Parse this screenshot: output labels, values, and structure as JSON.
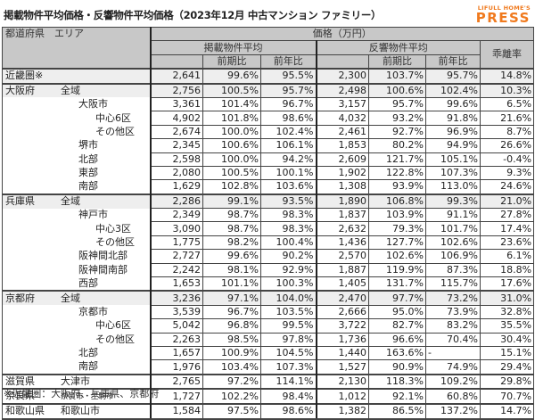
{
  "title": "掲載物件平均価格・反響物件平均価格（2023年12月 中古マンション ファミリー）",
  "logo": {
    "small": "LIFULL HOME'S",
    "big": "PRESS",
    "color": "#f07a1e"
  },
  "table": {
    "header": {
      "region": "都道府県　エリア",
      "price": "価格（万円）",
      "listed": "掲載物件平均",
      "inquired": "反響物件平均",
      "qoq": "前期比",
      "yoy": "前年比",
      "gap": "乖離率"
    },
    "rows": [
      {
        "pref": "近畿圏※",
        "area": "",
        "level": 0,
        "lp": "2,641",
        "lq": "99.6%",
        "ly": "95.5%",
        "ip": "2,300",
        "iq": "103.7%",
        "iy": "95.7%",
        "gap": "14.8%"
      },
      {
        "pref": "大阪府",
        "area": "全域",
        "level": 0,
        "lp": "2,756",
        "lq": "100.5%",
        "ly": "95.7%",
        "ip": "2,498",
        "iq": "100.6%",
        "iy": "102.4%",
        "gap": "10.3%"
      },
      {
        "pref": "",
        "area": "大阪市",
        "level": 1,
        "lp": "3,361",
        "lq": "101.4%",
        "ly": "96.7%",
        "ip": "3,157",
        "iq": "95.7%",
        "iy": "99.6%",
        "gap": "6.5%"
      },
      {
        "pref": "",
        "area": "中心6区",
        "level": 2,
        "lp": "4,902",
        "lq": "101.8%",
        "ly": "98.6%",
        "ip": "4,032",
        "iq": "93.2%",
        "iy": "91.8%",
        "gap": "21.6%"
      },
      {
        "pref": "",
        "area": "その他区",
        "level": 2,
        "lp": "2,674",
        "lq": "100.0%",
        "ly": "102.4%",
        "ip": "2,461",
        "iq": "92.7%",
        "iy": "96.9%",
        "gap": "8.7%"
      },
      {
        "pref": "",
        "area": "堺市",
        "level": 1,
        "lp": "2,345",
        "lq": "100.6%",
        "ly": "106.1%",
        "ip": "1,853",
        "iq": "80.2%",
        "iy": "94.9%",
        "gap": "26.6%"
      },
      {
        "pref": "",
        "area": "北部",
        "level": 1,
        "lp": "2,598",
        "lq": "100.0%",
        "ly": "94.2%",
        "ip": "2,609",
        "iq": "121.7%",
        "iy": "105.1%",
        "gap": "-0.4%"
      },
      {
        "pref": "",
        "area": "東部",
        "level": 1,
        "lp": "2,080",
        "lq": "100.5%",
        "ly": "100.1%",
        "ip": "1,902",
        "iq": "122.8%",
        "iy": "107.3%",
        "gap": "9.3%"
      },
      {
        "pref": "",
        "area": "南部",
        "level": 1,
        "lp": "1,629",
        "lq": "102.8%",
        "ly": "103.6%",
        "ip": "1,308",
        "iq": "93.9%",
        "iy": "113.0%",
        "gap": "24.6%"
      },
      {
        "pref": "兵庫県",
        "area": "全域",
        "level": 0,
        "lp": "2,286",
        "lq": "99.1%",
        "ly": "93.5%",
        "ip": "1,890",
        "iq": "106.8%",
        "iy": "99.3%",
        "gap": "21.0%"
      },
      {
        "pref": "",
        "area": "神戸市",
        "level": 1,
        "lp": "2,349",
        "lq": "98.7%",
        "ly": "98.3%",
        "ip": "1,837",
        "iq": "103.9%",
        "iy": "91.1%",
        "gap": "27.8%"
      },
      {
        "pref": "",
        "area": "中心3区",
        "level": 2,
        "lp": "3,090",
        "lq": "98.7%",
        "ly": "98.3%",
        "ip": "2,632",
        "iq": "79.3%",
        "iy": "101.7%",
        "gap": "17.4%"
      },
      {
        "pref": "",
        "area": "その他区",
        "level": 2,
        "lp": "1,775",
        "lq": "98.2%",
        "ly": "100.4%",
        "ip": "1,436",
        "iq": "127.7%",
        "iy": "102.6%",
        "gap": "23.6%"
      },
      {
        "pref": "",
        "area": "阪神間北部",
        "level": 1,
        "lp": "2,727",
        "lq": "99.6%",
        "ly": "90.2%",
        "ip": "2,570",
        "iq": "102.6%",
        "iy": "106.9%",
        "gap": "6.1%"
      },
      {
        "pref": "",
        "area": "阪神間南部",
        "level": 1,
        "lp": "2,242",
        "lq": "98.1%",
        "ly": "92.9%",
        "ip": "1,887",
        "iq": "119.9%",
        "iy": "87.3%",
        "gap": "18.8%"
      },
      {
        "pref": "",
        "area": "西部",
        "level": 1,
        "lp": "1,653",
        "lq": "101.1%",
        "ly": "100.3%",
        "ip": "1,405",
        "iq": "131.7%",
        "iy": "115.7%",
        "gap": "17.6%"
      },
      {
        "pref": "京都府",
        "area": "全域",
        "level": 0,
        "lp": "3,236",
        "lq": "97.1%",
        "ly": "104.0%",
        "ip": "2,470",
        "iq": "97.7%",
        "iy": "73.2%",
        "gap": "31.0%"
      },
      {
        "pref": "",
        "area": "京都市",
        "level": 1,
        "lp": "3,539",
        "lq": "96.7%",
        "ly": "103.5%",
        "ip": "2,666",
        "iq": "95.0%",
        "iy": "73.9%",
        "gap": "32.8%"
      },
      {
        "pref": "",
        "area": "中心6区",
        "level": 2,
        "lp": "5,042",
        "lq": "96.8%",
        "ly": "99.5%",
        "ip": "3,722",
        "iq": "82.7%",
        "iy": "83.2%",
        "gap": "35.5%"
      },
      {
        "pref": "",
        "area": "その他区",
        "level": 2,
        "lp": "2,263",
        "lq": "98.5%",
        "ly": "97.8%",
        "ip": "1,736",
        "iq": "96.6%",
        "iy": "70.4%",
        "gap": "30.4%"
      },
      {
        "pref": "",
        "area": "北部",
        "level": 1,
        "lp": "1,657",
        "lq": "100.9%",
        "ly": "104.5%",
        "ip": "1,440",
        "iq": "163.6%",
        "iy": "-",
        "gap": "15.1%"
      },
      {
        "pref": "",
        "area": "南部",
        "level": 1,
        "lp": "1,976",
        "lq": "103.4%",
        "ly": "107.3%",
        "ip": "1,527",
        "iq": "90.9%",
        "iy": "74.9%",
        "gap": "29.4%"
      },
      {
        "pref": "滋賀県",
        "area": "大津市",
        "level": 0,
        "lp": "2,765",
        "lq": "97.2%",
        "ly": "114.1%",
        "ip": "2,130",
        "iq": "118.3%",
        "iy": "109.2%",
        "gap": "29.8%"
      },
      {
        "pref": "奈良県",
        "area": "奈良市・生駒市",
        "level": 0,
        "lp": "1,727",
        "lq": "102.2%",
        "ly": "98.4%",
        "ip": "1,012",
        "iq": "92.1%",
        "iy": "60.8%",
        "gap": "70.7%"
      },
      {
        "pref": "和歌山県",
        "area": "和歌山市",
        "level": 0,
        "lp": "1,584",
        "lq": "97.5%",
        "ly": "98.6%",
        "ip": "1,382",
        "iq": "86.5%",
        "iy": "137.2%",
        "gap": "14.7%"
      }
    ]
  },
  "footnote": "※近畿圏：大阪府、兵庫県、京都府"
}
